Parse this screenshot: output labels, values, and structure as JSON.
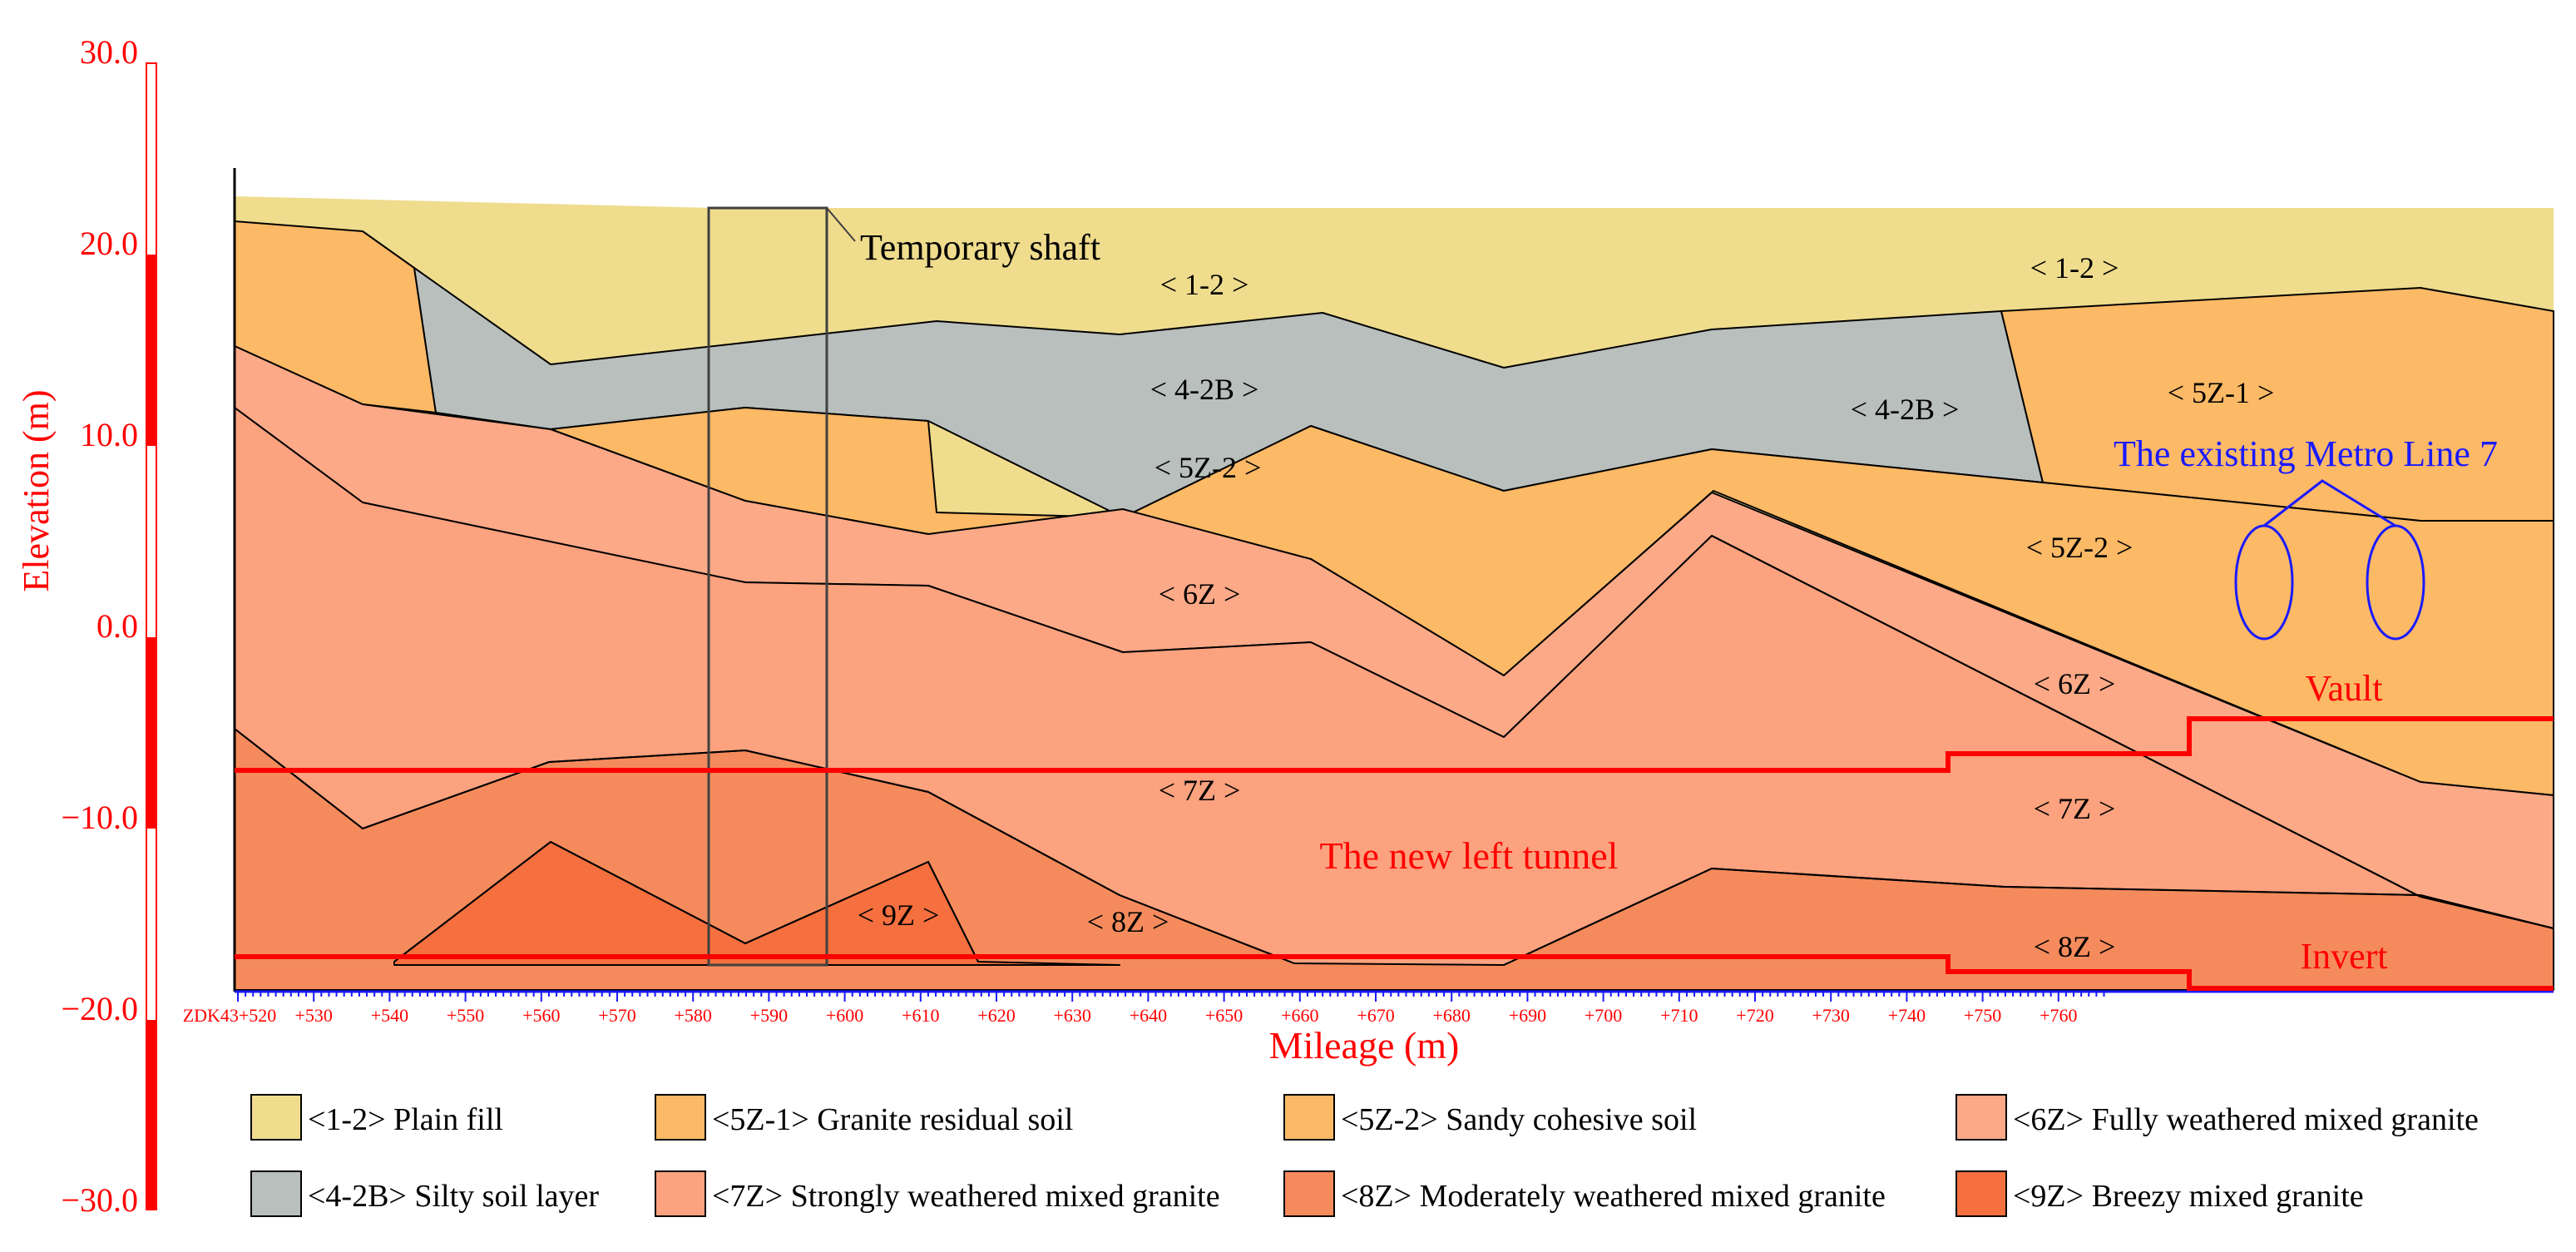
{
  "axes": {
    "y_label": "Elevation (m)",
    "x_label": "Mileage (m)",
    "y_ticks": [
      "30.0",
      "20.0",
      "10.0",
      "0.0",
      "−10.0",
      "−20.0",
      "−30.0"
    ],
    "x_ticks": [
      "ZDK43+520",
      "+530",
      "+540",
      "+550",
      "+560",
      "+570",
      "+580",
      "+590",
      "+600",
      "+610",
      "+620",
      "+630",
      "+640",
      "+650",
      "+660",
      "+670",
      "+680",
      "+690",
      "+700",
      "+710",
      "+720",
      "+730",
      "+740",
      "+750",
      "+760"
    ]
  },
  "layer_labels": {
    "l12_a": "< 1-2 >",
    "l12_b": "< 1-2 >",
    "l42b_a": "< 4-2B >",
    "l42b_b": "< 4-2B >",
    "l5z1": "< 5Z-1 >",
    "l5z2_a": "< 5Z-2 >",
    "l5z2_b": "< 5Z-2 >",
    "l6z_a": "< 6Z >",
    "l6z_b": "< 6Z >",
    "l7z_a": "< 7Z >",
    "l7z_b": "< 7Z >",
    "l8z_a": "< 8Z >",
    "l8z_b": "< 8Z >",
    "l9z": "< 9Z >"
  },
  "annotations": {
    "shaft": "Temporary shaft",
    "metro": "The existing Metro Line 7",
    "vault": "Vault",
    "tunnel": "The new left tunnel",
    "invert": "Invert"
  },
  "legend": {
    "items": [
      {
        "label": "<1-2> Plain fill",
        "color": "#efdc8d"
      },
      {
        "label": "<5Z-1> Granite residual soil",
        "color": "#fcb966"
      },
      {
        "label": "<5Z-2> Sandy cohesive soil",
        "color": "#fcb966"
      },
      {
        "label": "<6Z> Fully weathered mixed granite",
        "color": "#fca987"
      },
      {
        "label": "<4-2B> Silty soil layer",
        "color": "#b8bfbc"
      },
      {
        "label": "<7Z> Strongly weathered mixed granite",
        "color": "#fca27e"
      },
      {
        "label": "<8Z> Moderately weathered mixed granite",
        "color": "#f58b5c"
      },
      {
        "label": "<9Z> Breezy mixed granite",
        "color": "#f5703e"
      }
    ]
  },
  "colors": {
    "fill_12": "#efdc8d",
    "fill_42b": "#b8bfbc",
    "fill_5z": "#fcb966",
    "fill_6z": "#fca987",
    "fill_7z": "#fca27e",
    "fill_8z": "#f58b5c",
    "fill_9z": "#f5703e",
    "accent_red": "#ff0000",
    "metro_blue": "#1a1aff"
  }
}
